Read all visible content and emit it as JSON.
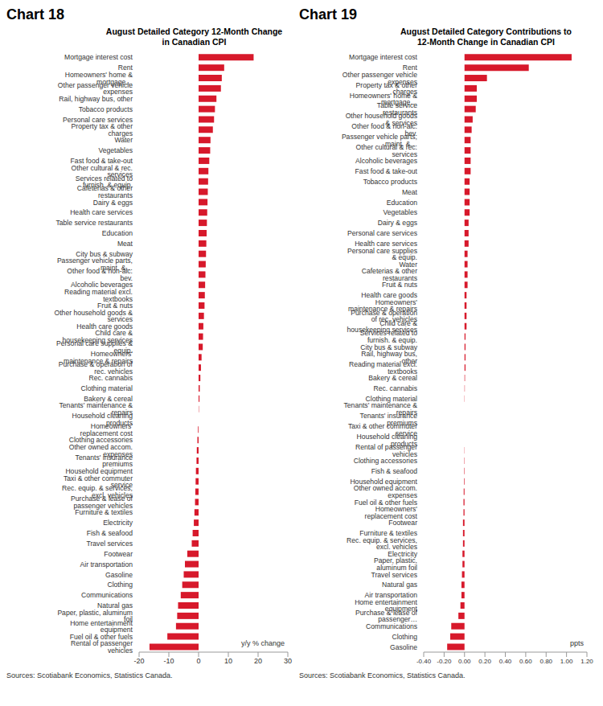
{
  "chart_data": [
    {
      "type": "bar",
      "orientation": "horizontal",
      "title": "Chart 18",
      "subtitle": "August Detailed Category 12-Month Change in Canadian CPI",
      "xlabel": "y/y % change",
      "source": "Sources: Scotiabank Economics, Statistics Canada.",
      "color": "#d7192b",
      "xlim": [
        -20,
        30
      ],
      "xticks": [
        -20,
        -10,
        0,
        10,
        20,
        30
      ],
      "categories": [
        "Mortgage interest cost",
        "Rent",
        "Homeowners' home & mortgage…",
        "Other passenger vehicle expenses",
        "Rail, highway bus, other",
        "Tobacco products",
        "Personal care services",
        "Property tax & other charges",
        "Water",
        "Vegetables",
        "Fast food & take-out",
        "Other cultural & rec. services",
        "Services related to furnish. & equip.",
        "Cafeterias & other restaurants",
        "Dairy & eggs",
        "Health care services",
        "Table service restaurants",
        "Education",
        "Meat",
        "City bus & subway",
        "Passenger vehicle parts, maint. &…",
        "Other food & non-alc. bev.",
        "Alcoholic beverages",
        "Reading material excl. textbooks",
        "Fruit & nuts",
        "Other household goods & services",
        "Health care goods",
        "Child care & housekeeping services",
        "Personal care supplies & equip.",
        "Homeowners' maintenance & repairs",
        "Purchase & operation of rec. vehicles",
        "Rec. cannabis",
        "Clothing material",
        "Bakery & cereal",
        "Tenants' maintenance & repairs",
        "Household cleaning products",
        "Homeowners' replacement cost",
        "Clothing accessories",
        "Other owned accom. expenses",
        "Tenants' insurance premiums",
        "Household equipment",
        "Taxi & other commuter service",
        "Rec. equip. & services, excl. vehicles",
        "Purchase & lease of passenger vehicles",
        "Furniture & textiles",
        "Electricity",
        "Fish & seafood",
        "Travel services",
        "Footwear",
        "Air transportation",
        "Gasoline",
        "Clothing",
        "Communications",
        "Natural gas",
        "Paper, plastic, aluminum foil",
        "Home entertainment equipment",
        "Fuel oil & other fuels",
        "Rental of passenger vehicles"
      ],
      "values": [
        18.5,
        8.6,
        7.8,
        7.5,
        6.0,
        5.5,
        5.2,
        4.8,
        4.0,
        3.9,
        3.6,
        3.3,
        3.2,
        3.1,
        3.0,
        2.9,
        2.8,
        2.7,
        2.6,
        2.5,
        2.4,
        2.3,
        2.2,
        2.1,
        2.0,
        1.8,
        1.6,
        1.5,
        1.4,
        1.0,
        0.8,
        0.6,
        0.4,
        0.3,
        0.1,
        0.0,
        -0.2,
        -0.4,
        -0.6,
        -0.7,
        -0.9,
        -1.0,
        -1.1,
        -1.2,
        -1.4,
        -1.6,
        -2.0,
        -2.3,
        -3.8,
        -4.6,
        -5.0,
        -5.5,
        -6.0,
        -6.9,
        -7.2,
        -7.6,
        -10.5,
        -16.5
      ]
    },
    {
      "type": "bar",
      "orientation": "horizontal",
      "title": "Chart 19",
      "subtitle": "August Detailed Category Contributions to 12-Month Change in Canadian CPI",
      "xlabel": "ppts",
      "source": "Sources: Scotiabank Economics, Statistics Canada.",
      "color": "#d7192b",
      "xlim": [
        -0.4,
        1.2
      ],
      "xticks": [
        {
          "value": -0.4,
          "label": "-0.40"
        },
        {
          "value": -0.2,
          "label": "-0.20"
        },
        {
          "value": 0,
          "label": "0.00"
        },
        {
          "value": 0.2,
          "label": "0.20"
        },
        {
          "value": 0.4,
          "label": "0.40"
        },
        {
          "value": 0.6,
          "label": "0.60"
        },
        {
          "value": 0.8,
          "label": "0.80"
        },
        {
          "value": 1.0,
          "label": "1.00"
        },
        {
          "value": 1.2,
          "label": "1.20"
        }
      ],
      "categories": [
        "Mortgage interest cost",
        "Rent",
        "Other passenger vehicle expenses",
        "Property tax & other charges",
        "Homeowners' home & mortgage…",
        "Table service restaurants",
        "Other household goods & services",
        "Other food & non-alc. bev.",
        "Passenger vehicle parts, maint. &…",
        "Other cultural & rec. services",
        "Alcoholic beverages",
        "Fast food & take-out",
        "Tobacco products",
        "Meat",
        "Education",
        "Vegetables",
        "Dairy & eggs",
        "Personal care services",
        "Health care services",
        "Personal care supplies & equip.",
        "Water",
        "Cafeterias & other restaurants",
        "Fruit & nuts",
        "Health care goods",
        "Homeowners' maintenance & repairs",
        "Purchase & operation of rec. vehicles",
        "Child care & housekeeping services",
        "Services related to furnish. & equip.",
        "City bus & subway",
        "Rail, highway bus, other",
        "Reading material excl. textbooks",
        "Bakery & cereal",
        "Rec. cannabis",
        "Clothing material",
        "Tenants' maintenance & repairs",
        "Tenants' insurance premiums",
        "Taxi & other commuter service",
        "Household cleaning products",
        "Rental of passenger vehicles",
        "Clothing accessories",
        "Fish & seafood",
        "Household equipment",
        "Other owned accom. expenses",
        "Fuel oil & other fuels",
        "Homeowners' replacement cost",
        "Footwear",
        "Furniture & textiles",
        "Rec. equip. & services, excl. vehicles",
        "Electricity",
        "Paper, plastic, aluminum foil",
        "Travel services",
        "Natural gas",
        "Air transportation",
        "Home entertainment equipment",
        "Purchase & lease of passenger…",
        "Communications",
        "Clothing",
        "Gasoline"
      ],
      "values": [
        1.05,
        0.63,
        0.22,
        0.12,
        0.12,
        0.11,
        0.08,
        0.07,
        0.06,
        0.06,
        0.06,
        0.06,
        0.05,
        0.05,
        0.05,
        0.05,
        0.04,
        0.04,
        0.04,
        0.03,
        0.03,
        0.03,
        0.03,
        0.02,
        0.02,
        0.02,
        0.02,
        0.01,
        0.01,
        0.01,
        0.01,
        0.005,
        0.003,
        0.002,
        0.0,
        0.0,
        0.0,
        0.0,
        -0.002,
        -0.003,
        -0.004,
        -0.005,
        -0.008,
        -0.01,
        -0.01,
        -0.015,
        -0.015,
        -0.015,
        -0.02,
        -0.02,
        -0.025,
        -0.03,
        -0.03,
        -0.04,
        -0.06,
        -0.13,
        -0.14,
        -0.17
      ]
    }
  ]
}
